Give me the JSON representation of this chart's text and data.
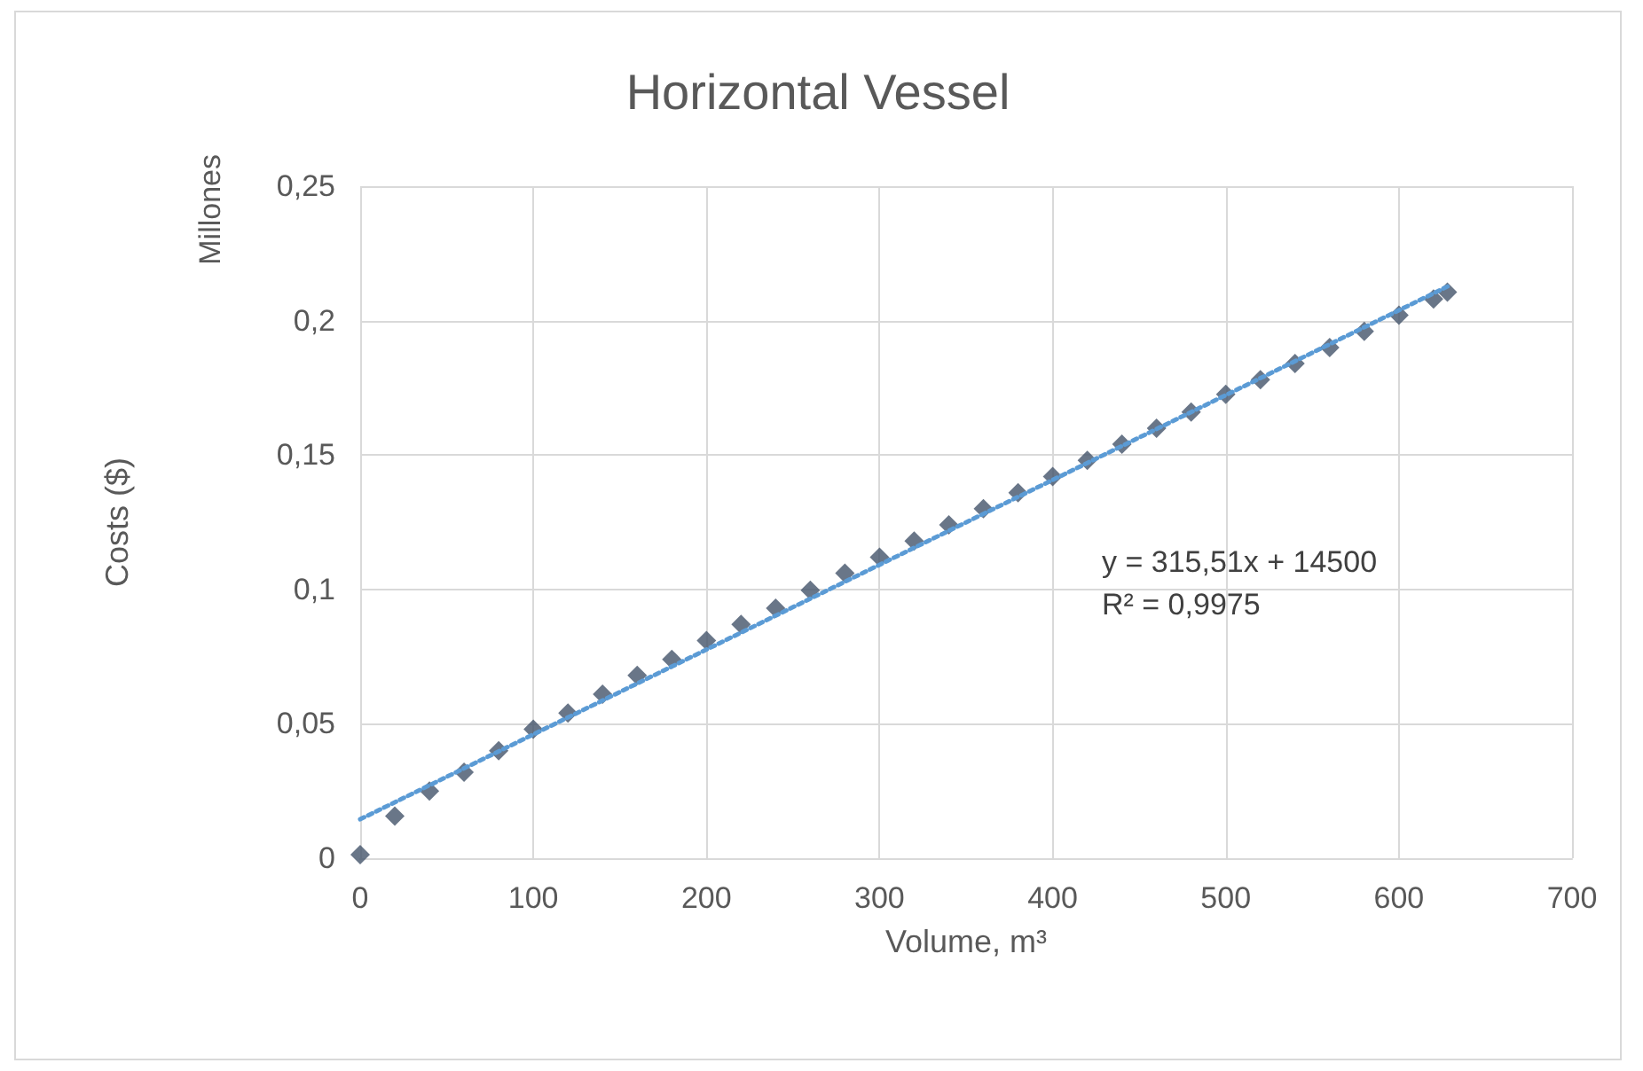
{
  "chart_data": {
    "type": "scatter",
    "title": "Horizontal Vessel",
    "xlabel": "Volume, m³",
    "ylabel": "Costs ($)",
    "annotations": [
      "Millones",
      "y = 315,51x + 14500",
      "R² = 0,9975"
    ],
    "x": [
      0,
      20,
      40,
      60,
      80,
      100,
      120,
      140,
      160,
      180,
      200,
      220,
      240,
      260,
      280,
      300,
      320,
      340,
      360,
      380,
      400,
      420,
      440,
      460,
      480,
      500,
      520,
      540,
      560,
      580,
      600,
      620,
      628
    ],
    "series": [
      {
        "color": "#44546a",
        "marker": "diamond",
        "values": [
          0.0013,
          0.0157,
          0.025,
          0.032,
          0.04,
          0.048,
          0.054,
          0.061,
          0.068,
          0.074,
          0.081,
          0.087,
          0.093,
          0.0997,
          0.106,
          0.112,
          0.118,
          0.124,
          0.13,
          0.136,
          0.142,
          0.148,
          0.154,
          0.16,
          0.166,
          0.1726,
          0.178,
          0.184,
          0.19,
          0.196,
          0.202,
          0.208,
          0.2106
        ]
      },
      {
        "type": "line",
        "color": "#5b9bd5",
        "line_style": "dotted",
        "marker": "none",
        "x": [
          0,
          630
        ],
        "values": [
          0.0145,
          0.2133
        ]
      }
    ],
    "xlim": [
      0,
      700
    ],
    "xticks": [
      0,
      100,
      200,
      300,
      400,
      500,
      600,
      700
    ],
    "ylim": [
      0,
      0.25
    ],
    "yticks": [
      {
        "value": 0,
        "label": "0"
      },
      {
        "value": 0.05,
        "label": "0,05"
      },
      {
        "value": 0.1,
        "label": "0,1"
      },
      {
        "value": 0.15,
        "label": "0,15"
      },
      {
        "value": 0.2,
        "label": "0,2"
      },
      {
        "value": 0.25,
        "label": "0,25"
      }
    ],
    "grid": true
  }
}
